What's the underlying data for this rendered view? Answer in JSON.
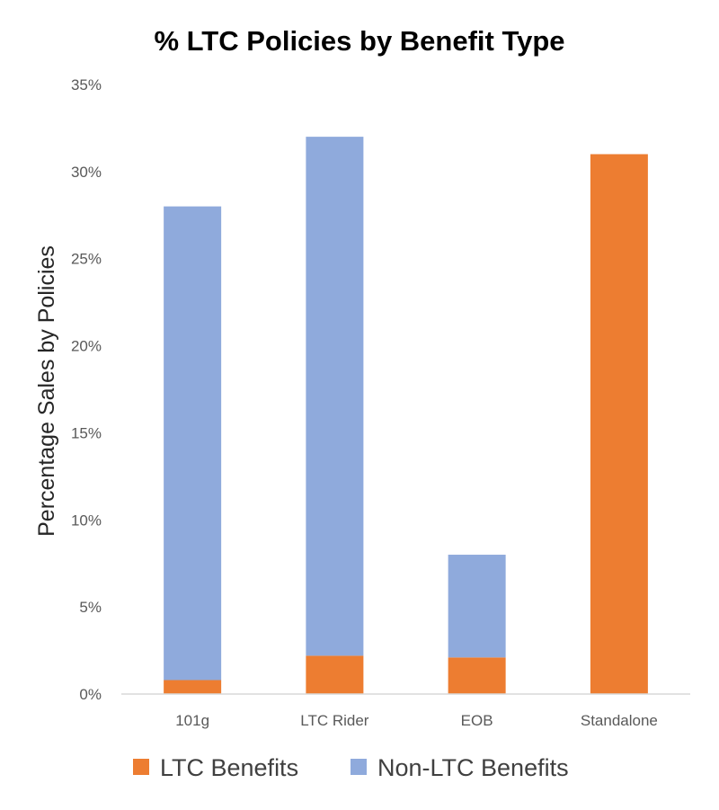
{
  "chart_data": {
    "type": "bar",
    "stacked": true,
    "title": "% LTC Policies by Benefit Type",
    "xlabel": "",
    "ylabel": "Percentage Sales by Policies",
    "categories": [
      "101g",
      "LTC Rider",
      "EOB",
      "Standalone"
    ],
    "series": [
      {
        "name": "LTC Benefits",
        "color": "#ED7D31",
        "values": [
          0.8,
          2.2,
          2.1,
          31.0
        ]
      },
      {
        "name": "Non-LTC Benefits",
        "color": "#8FAADC",
        "values": [
          27.2,
          29.8,
          5.9,
          0.0
        ]
      }
    ],
    "ylim": [
      0,
      35
    ],
    "yticks": [
      "0%",
      "5%",
      "10%",
      "15%",
      "20%",
      "25%",
      "30%",
      "35%"
    ],
    "ytick_values": [
      0,
      5,
      10,
      15,
      20,
      25,
      30,
      35
    ],
    "grid": false,
    "legend_position": "bottom"
  }
}
